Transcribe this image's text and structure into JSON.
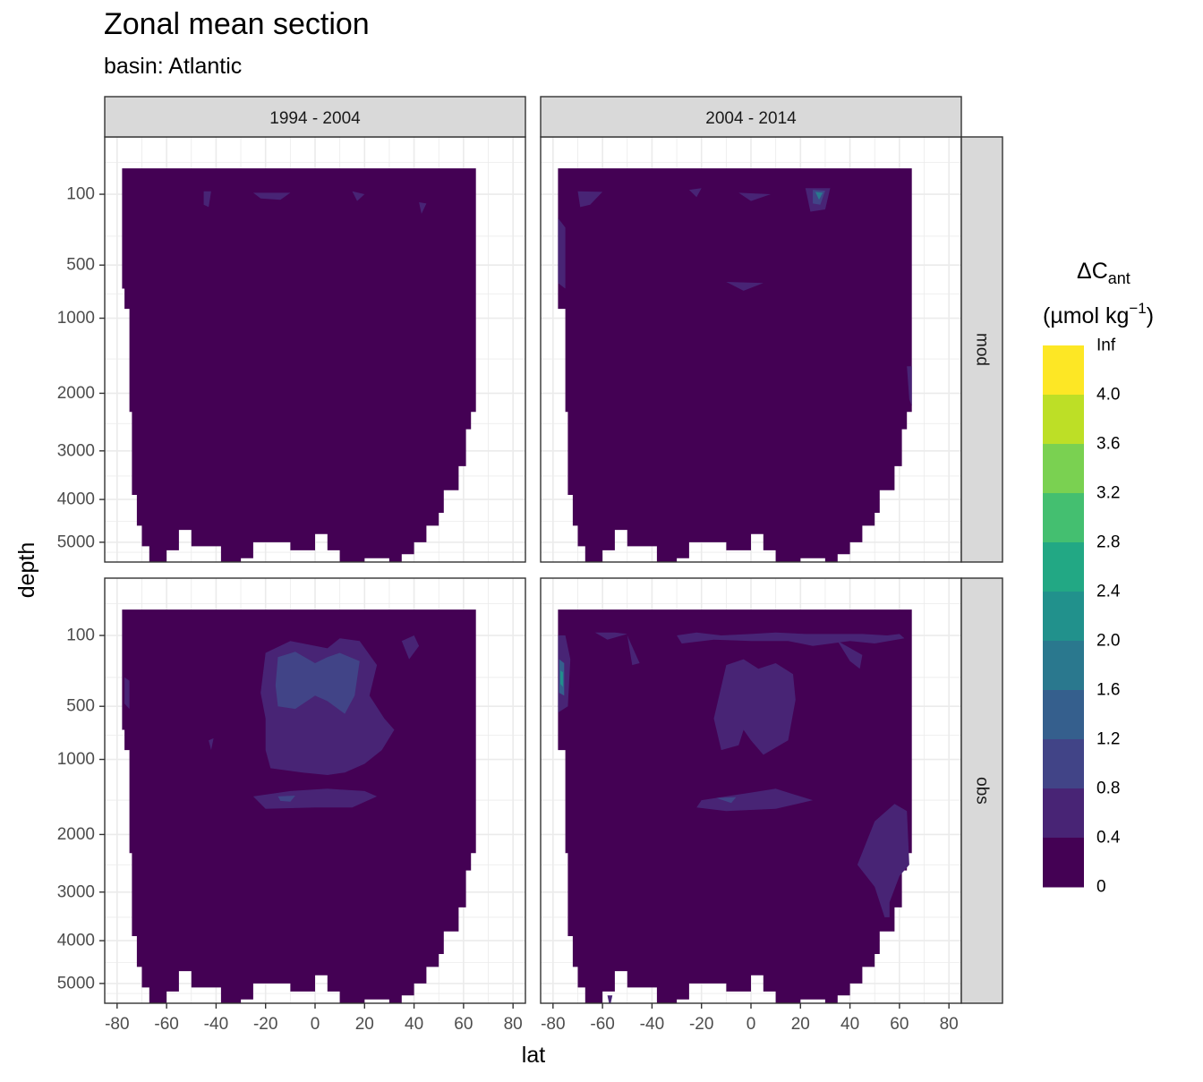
{
  "title": "Zonal mean section",
  "subtitle": "basin: Atlantic",
  "chart_data": {
    "type": "heatmap",
    "title": "Zonal mean section",
    "subtitle": "basin: Atlantic",
    "xlabel": "lat",
    "ylabel": "depth",
    "x_ticks": [
      "-80",
      "-60",
      "-40",
      "-20",
      "0",
      "20",
      "40",
      "60",
      "80"
    ],
    "y_ticks": [
      "100",
      "500",
      "1000",
      "2000",
      "3000",
      "4000",
      "5000"
    ],
    "xlim": [
      -85,
      85
    ],
    "ylim": [
      5500,
      0
    ],
    "facet_cols": [
      "1994 - 2004",
      "2004 - 2014"
    ],
    "facet_rows": [
      "mod",
      "obs"
    ],
    "grid": true,
    "legend": {
      "title_main": "ΔC",
      "title_sub": "ant",
      "units_main": "(µmol kg",
      "units_sup": "−1",
      "units_end": ")",
      "placement": "right",
      "breaks": [
        "Inf",
        "4.0",
        "3.6",
        "3.2",
        "2.8",
        "2.4",
        "2.0",
        "1.6",
        "1.2",
        "0.8",
        "0.4",
        "0"
      ],
      "colors": [
        "#fde725",
        "#bddf26",
        "#7ad151",
        "#44bf70",
        "#22a884",
        "#21918c",
        "#2a788e",
        "#355f8d",
        "#414487",
        "#482475",
        "#440154"
      ]
    },
    "dominant_class": "0 - 0.4",
    "colors": {
      "c0": "#440154",
      "c1": "#482475",
      "c2": "#414487",
      "c3": "#355f8d",
      "c4": "#2a788e",
      "c5": "#21918c",
      "c6": "#22a884",
      "panel_bg": "#ffffff",
      "grid": "#ebebeb",
      "strip": "#d9d9d9"
    }
  }
}
